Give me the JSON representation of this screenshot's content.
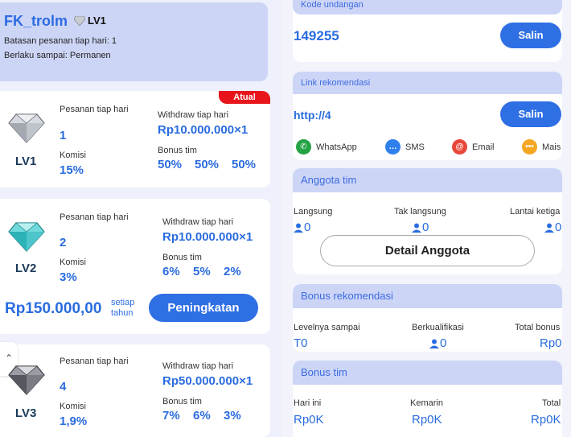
{
  "profile": {
    "username": "FK_trolm",
    "level": "LV1",
    "order_limit": "Batasan pesanan tiap hari: 1",
    "valid_until": "Berlaku sampai: Permanen"
  },
  "labels": {
    "orders_per_day": "Pesanan tiap hari",
    "withdraw_per_day": "Withdraw tiap hari",
    "commission": "Komisi",
    "team_bonus": "Bonus tim",
    "current_badge": "Atual"
  },
  "levels": [
    {
      "name": "LV1",
      "orders": "1",
      "withdraw": "Rp10.000.000×1",
      "commission": "15%",
      "bonus": [
        "50%",
        "50%",
        "50%"
      ]
    },
    {
      "name": "LV2",
      "orders": "2",
      "withdraw": "Rp10.000.000×1",
      "commission": "3%",
      "bonus": [
        "6%",
        "5%",
        "2%"
      ]
    },
    {
      "name": "LV3",
      "orders": "4",
      "withdraw": "Rp50.000.000×1",
      "commission": "1,9%",
      "bonus": [
        "7%",
        "6%",
        "3%"
      ]
    }
  ],
  "upgrade": {
    "price": "Rp150.000,00",
    "unit": "setiap tahun",
    "button": "Peningkatan"
  },
  "invite": {
    "header": "Kode undangan",
    "code": "149255",
    "copy": "Salin"
  },
  "referral_link": {
    "header": "Link rekomendasi",
    "url": "http://4",
    "copy": "Salin",
    "share": [
      {
        "name": "WhatsApp",
        "color": "#25a244"
      },
      {
        "name": "SMS",
        "color": "#2f80ed"
      },
      {
        "name": "Email",
        "color": "#e8463a"
      },
      {
        "name": "Mais",
        "color": "#f5a623"
      }
    ]
  },
  "team": {
    "header": "Anggota tim",
    "cols": [
      {
        "label": "Langsung",
        "value": "0"
      },
      {
        "label": "Tak langsung",
        "value": "0"
      },
      {
        "label": "Lantai ketiga",
        "value": "0"
      }
    ],
    "detail_button": "Detail Anggota"
  },
  "referral_bonus": {
    "header": "Bonus rekomendasi",
    "cols": [
      {
        "label": "Levelnya sampai",
        "value": "T0"
      },
      {
        "label": "Berkualifikasi",
        "value": "0"
      },
      {
        "label": "Total bonus",
        "value": "Rp0"
      }
    ]
  },
  "team_bonus": {
    "header": "Bonus tim",
    "cols": [
      {
        "label": "Hari ini",
        "value": "Rp0K"
      },
      {
        "label": "Kemarin",
        "value": "Rp0K"
      },
      {
        "label": "Total",
        "value": "Rp0K"
      }
    ]
  }
}
